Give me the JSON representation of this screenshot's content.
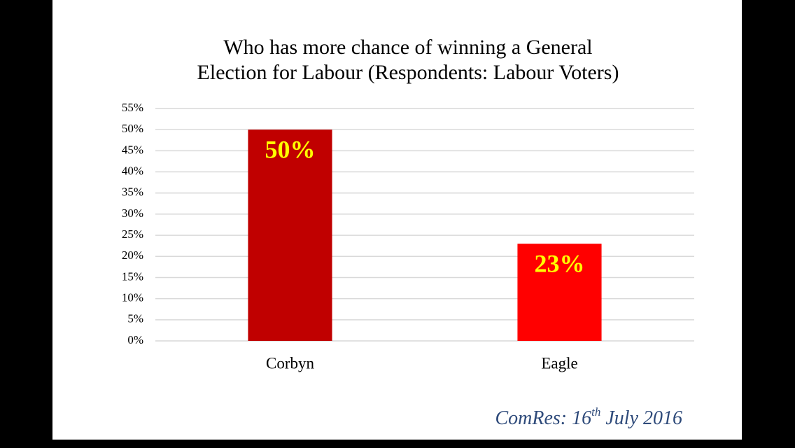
{
  "chart_data": {
    "type": "bar",
    "title": [
      "Who has more chance of winning a General",
      "Election for Labour (Respondents: Labour Voters)"
    ],
    "categories": [
      "Corbyn",
      "Eagle"
    ],
    "values": [
      50,
      23
    ],
    "value_labels": [
      "50%",
      "23%"
    ],
    "colors": [
      "#c00000",
      "#ff0000"
    ],
    "ylim": [
      0,
      55
    ],
    "yticks": [
      {
        "value": 0,
        "label": "0%"
      },
      {
        "value": 5,
        "label": "5%"
      },
      {
        "value": 10,
        "label": "10%"
      },
      {
        "value": 15,
        "label": "15%"
      },
      {
        "value": 20,
        "label": "20%"
      },
      {
        "value": 25,
        "label": "25%"
      },
      {
        "value": 30,
        "label": "30%"
      },
      {
        "value": 35,
        "label": "35%"
      },
      {
        "value": 40,
        "label": "40%"
      },
      {
        "value": 45,
        "label": "45%"
      },
      {
        "value": 50,
        "label": "50%"
      },
      {
        "value": 55,
        "label": "55%"
      }
    ],
    "grid": true,
    "source": {
      "text": "ComRes: 16",
      "superscript": "th",
      "rest": " July 2016"
    }
  }
}
